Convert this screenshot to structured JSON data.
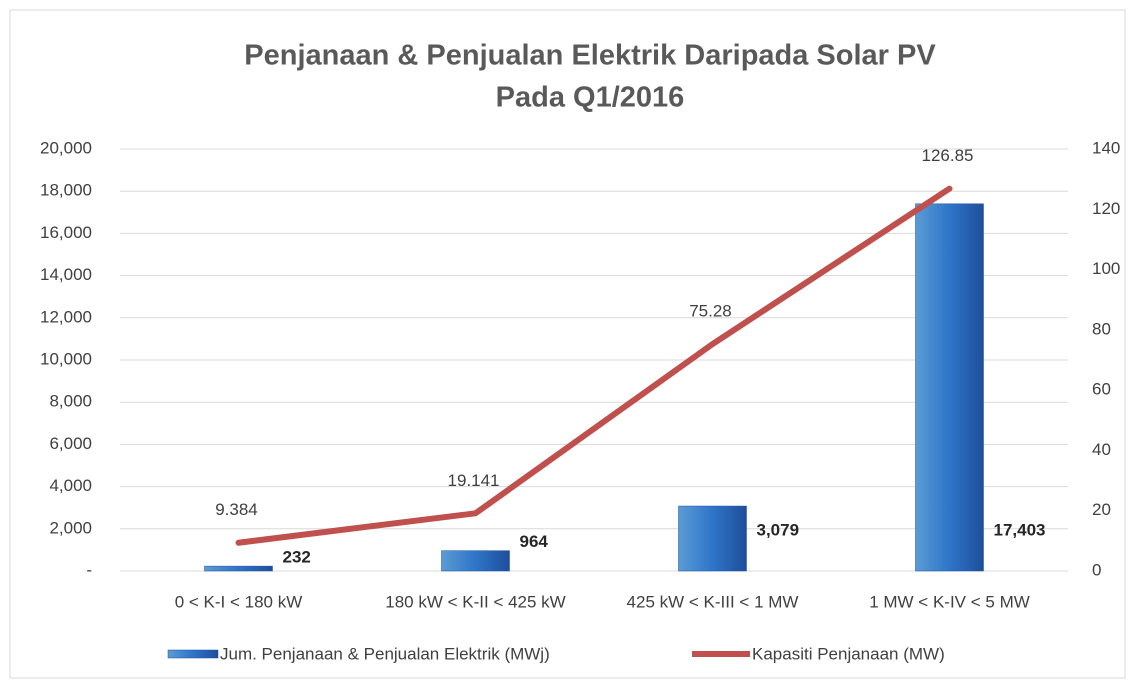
{
  "chart_data": {
    "type": "bar",
    "title": [
      "Penjanaan & Penjualan Elektrik Daripada Solar PV",
      "Pada Q1/2016"
    ],
    "categories": [
      "0 < K-I < 180 kW",
      "180 kW < K-II < 425 kW",
      "425 kW < K-III < 1 MW",
      "1 MW < K-IV < 5 MW"
    ],
    "series": [
      {
        "name": "Jum. Penjanaan & Penjualan Elektrik (MWj)",
        "type": "bar",
        "color": "#2e6bc2",
        "values": [
          232,
          964,
          3079,
          17403
        ],
        "value_labels": [
          "232",
          "964",
          "3,079",
          "17,403"
        ]
      },
      {
        "name": "Kapasiti Penjanaan (MW)",
        "type": "line",
        "axis": "y2",
        "color": "#c0504d",
        "values": [
          9.384,
          19.141,
          75.28,
          126.85
        ]
      }
    ],
    "ylim": [
      0,
      20000
    ],
    "yticks": [
      {
        "value": 0,
        "label": "-"
      },
      {
        "value": 2000,
        "label": "2,000"
      },
      {
        "value": 4000,
        "label": "4,000"
      },
      {
        "value": 6000,
        "label": "6,000"
      },
      {
        "value": 8000,
        "label": "8,000"
      },
      {
        "value": 10000,
        "label": "10,000"
      },
      {
        "value": 12000,
        "label": "12,000"
      },
      {
        "value": 14000,
        "label": "14,000"
      },
      {
        "value": 16000,
        "label": "16,000"
      },
      {
        "value": 18000,
        "label": "18,000"
      },
      {
        "value": 20000,
        "label": "20,000"
      }
    ],
    "y2lim": [
      0,
      140
    ],
    "y2ticks": [
      0,
      20,
      40,
      60,
      80,
      100,
      120,
      140
    ],
    "grid": true,
    "legend": "bottom"
  }
}
